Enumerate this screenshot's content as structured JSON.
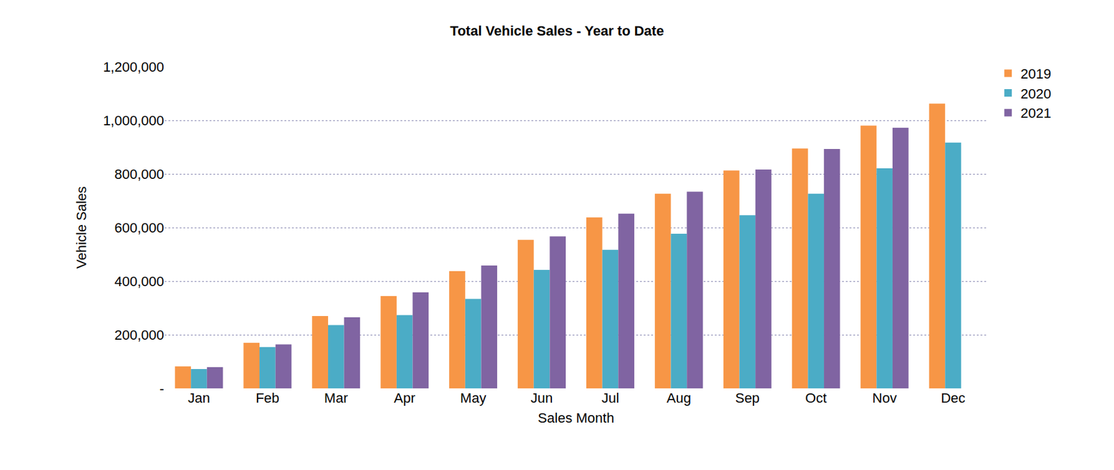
{
  "chart_data": {
    "type": "bar",
    "title": "Total Vehicle Sales - Year to Date",
    "x_label": "Sales Month",
    "y_label": "Vehicle Sales",
    "categories": [
      "Jan",
      "Feb",
      "Mar",
      "Apr",
      "May",
      "Jun",
      "Jul",
      "Aug",
      "Sep",
      "Oct",
      "Nov",
      "Dec"
    ],
    "series": [
      {
        "name": "2019",
        "color": "#f79646",
        "values": [
          82000,
          170000,
          270000,
          344000,
          437000,
          554000,
          638000,
          726000,
          813000,
          895000,
          980000,
          1062000
        ]
      },
      {
        "name": "2020",
        "color": "#4bacc6",
        "values": [
          72000,
          154000,
          236000,
          273000,
          334000,
          442000,
          517000,
          577000,
          646000,
          726000,
          821000,
          917000
        ]
      },
      {
        "name": "2021",
        "color": "#8064a2",
        "values": [
          79000,
          164000,
          265000,
          358000,
          458000,
          567000,
          652000,
          734000,
          816000,
          893000,
          972000,
          null
        ]
      }
    ],
    "ylim": [
      0,
      1200000
    ],
    "yticks": [
      {
        "value": 0,
        "label": "-"
      },
      {
        "value": 200000,
        "label": "200,000"
      },
      {
        "value": 400000,
        "label": "400,000"
      },
      {
        "value": 600000,
        "label": "600,000"
      },
      {
        "value": 800000,
        "label": "800,000"
      },
      {
        "value": 1000000,
        "label": "1,000,000"
      },
      {
        "value": 1200000,
        "label": "1,200,000"
      }
    ],
    "grid": true,
    "legend": "upper right"
  }
}
